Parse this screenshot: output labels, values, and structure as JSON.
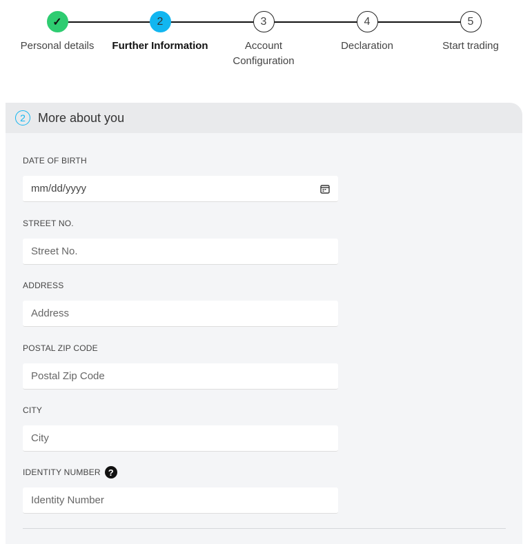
{
  "stepper": {
    "steps": [
      {
        "number": "✓",
        "label": "Personal details",
        "state": "done"
      },
      {
        "number": "2",
        "label": "Further Information",
        "state": "active"
      },
      {
        "number": "3",
        "label": "Account Configuration",
        "state": "pending"
      },
      {
        "number": "4",
        "label": "Declaration",
        "state": "pending"
      },
      {
        "number": "5",
        "label": "Start trading",
        "state": "pending"
      }
    ],
    "colors": {
      "done": "#2ecc71",
      "active": "#12b6f0"
    }
  },
  "section": {
    "number": "2",
    "title": "More about you"
  },
  "fields": [
    {
      "label": "DATE OF BIRTH",
      "placeholder": "mm/dd/yyyy",
      "icon": "calendar-icon"
    },
    {
      "label": "STREET NO.",
      "placeholder": "Street No."
    },
    {
      "label": "ADDRESS",
      "placeholder": "Address"
    },
    {
      "label": "POSTAL ZIP CODE",
      "placeholder": "Postal Zip Code"
    },
    {
      "label": "CITY",
      "placeholder": "City"
    },
    {
      "label": "IDENTITY NUMBER",
      "placeholder": "Identity Number",
      "icon": "help-icon"
    }
  ]
}
